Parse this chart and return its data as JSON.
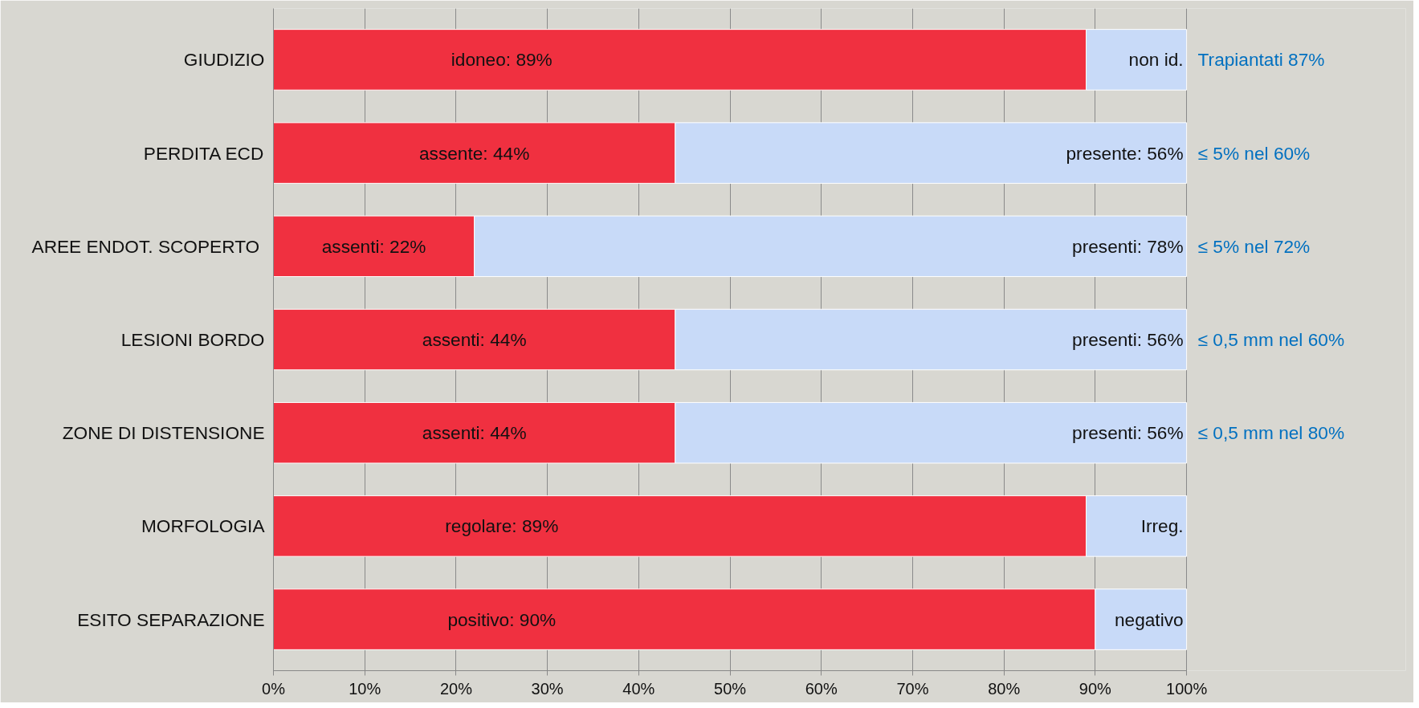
{
  "chart_data": {
    "type": "bar",
    "orientation": "horizontal",
    "stacked": true,
    "categories": [
      "GIUDIZIO",
      "PERDITA ECD",
      "AREE  ENDOT. SCOPERTO",
      "LESIONI BORDO",
      "ZONE DI DISTENSIONE",
      "MORFOLOGIA",
      "ESITO SEPARAZIONE"
    ],
    "series": [
      {
        "color": "#f03040",
        "values": [
          89,
          44,
          22,
          44,
          44,
          89,
          90
        ],
        "value_labels": [
          "idoneo: 89%",
          "assente: 44%",
          "assenti: 22%",
          "assenti: 44%",
          "assenti: 44%",
          "regolare: 89%",
          "positivo: 90%"
        ]
      },
      {
        "color": "#c8daf8",
        "values": [
          11,
          56,
          78,
          56,
          56,
          11,
          10
        ],
        "value_labels": [
          "non id.",
          "presente: 56%",
          "presenti: 78%",
          "presenti: 56%",
          "presenti: 56%",
          "Irreg.",
          "negativo"
        ]
      }
    ],
    "xlim": [
      0,
      100
    ],
    "xticks": [
      {
        "value": 0,
        "label": "0%"
      },
      {
        "value": 10,
        "label": "10%"
      },
      {
        "value": 20,
        "label": "20%"
      },
      {
        "value": 30,
        "label": "30%"
      },
      {
        "value": 40,
        "label": "40%"
      },
      {
        "value": 50,
        "label": "50%"
      },
      {
        "value": 60,
        "label": "60%"
      },
      {
        "value": 70,
        "label": "70%"
      },
      {
        "value": 80,
        "label": "80%"
      },
      {
        "value": 90,
        "label": "90%"
      },
      {
        "value": 100,
        "label": "100%"
      }
    ],
    "grid": "x",
    "annotations": [
      "Trapiantati 87%",
      "≤ 5% nel 60%",
      "≤ 5% nel 72%",
      "≤ 0,5 mm nel 60%",
      "≤ 0,5 mm nel  80%"
    ]
  }
}
